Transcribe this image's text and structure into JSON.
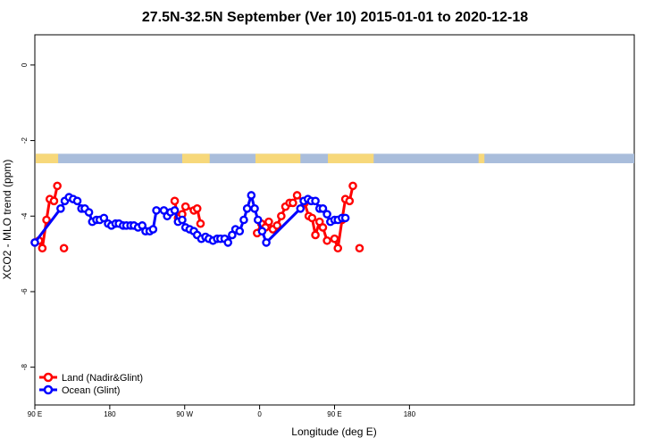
{
  "chart_data": {
    "type": "line",
    "title": "27.5N-32.5N September (Ver 10)   2015-01-01 to 2020-12-18",
    "xlabel": "Longitude (deg E)",
    "ylabel": "XCO2 - MLO trend (ppm)",
    "xlim": [
      90,
      450
    ],
    "ylim": [
      -9.0,
      0.8
    ],
    "x_ticks": [
      {
        "value": 90,
        "label": "90 E"
      },
      {
        "value": 180,
        "label": "180"
      },
      {
        "value": 270,
        "label": "90 W"
      },
      {
        "value": 360,
        "label": "0"
      },
      {
        "value": 450,
        "label": "90 E"
      },
      {
        "value": 540,
        "label": "180"
      }
    ],
    "y_ticks": [
      {
        "value": 0,
        "label": "0"
      },
      {
        "value": -2,
        "label": "-2"
      },
      {
        "value": -4,
        "label": "-4"
      },
      {
        "value": -6,
        "label": "-6"
      },
      {
        "value": -8,
        "label": "-8"
      }
    ],
    "grid": false,
    "legend_position": "bottom-left",
    "land_mask": {
      "y_top": -2.35,
      "y_bottom": -2.6,
      "land_color": "#f7d87a",
      "ocean_color": "#a9bddb",
      "land_segments": [
        [
          90,
          118
        ],
        [
          267,
          300
        ],
        [
          355,
          409
        ],
        [
          442,
          497
        ],
        [
          623,
          630
        ]
      ]
    },
    "series": [
      {
        "name": "Land (Nadir&Glint)",
        "color": "#ff0000",
        "segments": [
          [
            [
              90,
              -4.7
            ],
            [
              95,
              -4.65
            ],
            [
              99,
              -4.85
            ],
            [
              104,
              -4.1
            ],
            [
              108,
              -3.55
            ],
            [
              113,
              -3.6
            ],
            [
              117,
              -3.2
            ]
          ],
          [
            [
              258,
              -3.6
            ],
            [
              262,
              -4.05
            ],
            [
              267,
              -3.95
            ],
            [
              271,
              -3.75
            ],
            [
              281,
              -3.85
            ],
            [
              285,
              -3.8
            ],
            [
              289,
              -4.2
            ]
          ],
          [
            [
              357,
              -4.45
            ],
            [
              362,
              -4.2
            ],
            [
              367,
              -4.3
            ],
            [
              371,
              -4.15
            ],
            [
              376,
              -4.35
            ],
            [
              381,
              -4.25
            ],
            [
              386,
              -4.0
            ],
            [
              391,
              -3.75
            ],
            [
              396,
              -3.65
            ],
            [
              400,
              -3.65
            ],
            [
              405,
              -3.45
            ],
            [
              414,
              -3.65
            ],
            [
              419,
              -4.0
            ],
            [
              423,
              -4.05
            ],
            [
              427,
              -4.5
            ],
            [
              432,
              -4.15
            ],
            [
              436,
              -4.3
            ],
            [
              441,
              -4.65
            ],
            [
              450,
              -4.6
            ],
            [
              454,
              -4.85
            ],
            [
              459,
              -4.1
            ],
            [
              463,
              -3.55
            ],
            [
              468,
              -3.6
            ],
            [
              472,
              -3.2
            ]
          ]
        ],
        "isolated_points": [
          [
            125,
            -4.85
          ],
          [
            480,
            -4.85
          ]
        ]
      },
      {
        "name": "Ocean (Glint)",
        "color": "#0000ff",
        "points": [
          [
            90,
            -4.7
          ],
          [
            121,
            -3.8
          ],
          [
            126,
            -3.6
          ],
          [
            131,
            -3.5
          ],
          [
            136,
            -3.55
          ],
          [
            141,
            -3.6
          ],
          [
            146,
            -3.8
          ],
          [
            150,
            -3.8
          ],
          [
            155,
            -3.9
          ],
          [
            159,
            -4.15
          ],
          [
            164,
            -4.1
          ],
          [
            168,
            -4.1
          ],
          [
            173,
            -4.05
          ],
          [
            178,
            -4.2
          ],
          [
            182,
            -4.25
          ],
          [
            187,
            -4.2
          ],
          [
            191,
            -4.2
          ],
          [
            196,
            -4.25
          ],
          [
            200,
            -4.25
          ],
          [
            205,
            -4.25
          ],
          [
            209,
            -4.25
          ],
          [
            214,
            -4.3
          ],
          [
            219,
            -4.25
          ],
          [
            223,
            -4.4
          ],
          [
            228,
            -4.4
          ],
          [
            232,
            -4.35
          ],
          [
            236,
            -3.85
          ],
          [
            245,
            -3.85
          ],
          [
            249,
            -4.0
          ],
          [
            253,
            -3.9
          ],
          [
            258,
            -3.85
          ],
          [
            262,
            -4.15
          ],
          [
            267,
            -4.1
          ],
          [
            271,
            -4.3
          ],
          [
            276,
            -4.35
          ],
          [
            281,
            -4.4
          ],
          [
            285,
            -4.5
          ],
          [
            290,
            -4.6
          ],
          [
            295,
            -4.55
          ],
          [
            299,
            -4.6
          ],
          [
            304,
            -4.65
          ],
          [
            309,
            -4.6
          ],
          [
            313,
            -4.6
          ],
          [
            318,
            -4.6
          ],
          [
            322,
            -4.7
          ],
          [
            327,
            -4.5
          ],
          [
            331,
            -4.35
          ],
          [
            336,
            -4.4
          ],
          [
            341,
            -4.1
          ],
          [
            345,
            -3.8
          ],
          [
            350,
            -3.45
          ],
          [
            354,
            -3.8
          ],
          [
            358,
            -4.1
          ],
          [
            363,
            -4.4
          ],
          [
            368,
            -4.7
          ],
          [
            409,
            -3.8
          ],
          [
            413,
            -3.6
          ],
          [
            418,
            -3.55
          ],
          [
            422,
            -3.6
          ],
          [
            427,
            -3.6
          ],
          [
            432,
            -3.8
          ],
          [
            436,
            -3.8
          ],
          [
            441,
            -3.95
          ],
          [
            445,
            -4.15
          ],
          [
            450,
            -4.1
          ],
          [
            454,
            -4.1
          ],
          [
            459,
            -4.05
          ],
          [
            463,
            -4.05
          ]
        ]
      }
    ]
  }
}
